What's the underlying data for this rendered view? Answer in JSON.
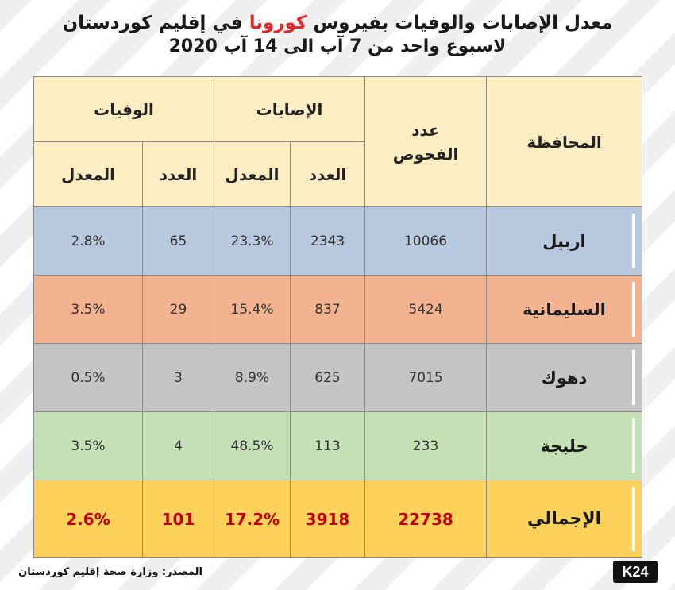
{
  "title": {
    "line1_before": "معدل الإصابات والوفيات بفيروس",
    "line1_accent": "كورونا",
    "line1_after": "في إقليم كوردستان",
    "line2": "لاسبوع واحد من 7 آب الى 14 آب 2020"
  },
  "colors": {
    "accent": "#e8262a",
    "header_bg": "#fdedc2",
    "erbil_bg": "#b8c8de",
    "sulaymaniyah_bg": "#f3b391",
    "duhok_bg": "#c4c4c4",
    "halabja_bg": "#c5e0b5",
    "total_bg": "#fcd25a",
    "total_text": "#c00000"
  },
  "table": {
    "headers": {
      "governorate": "المحافظة",
      "tests": "عدد الفحوص",
      "infections": "الإصابات",
      "deaths": "الوفيات",
      "count": "العدد",
      "rate": "المعدل"
    },
    "rows": [
      {
        "governorate": "اربيل",
        "tests": "10066",
        "inf_count": "2343",
        "inf_rate": "23.3%",
        "death_count": "65",
        "death_rate": "2.8%"
      },
      {
        "governorate": "السليمانية",
        "tests": "5424",
        "inf_count": "837",
        "inf_rate": "15.4%",
        "death_count": "29",
        "death_rate": "3.5%"
      },
      {
        "governorate": "دهوك",
        "tests": "7015",
        "inf_count": "625",
        "inf_rate": "8.9%",
        "death_count": "3",
        "death_rate": "0.5%"
      },
      {
        "governorate": "حلبجة",
        "tests": "233",
        "inf_count": "113",
        "inf_rate": "48.5%",
        "death_count": "4",
        "death_rate": "3.5%"
      }
    ],
    "total": {
      "governorate": "الإجمالي",
      "tests": "22738",
      "inf_count": "3918",
      "inf_rate": "17.2%",
      "death_count": "101",
      "death_rate": "2.6%"
    }
  },
  "source": "المصدر: وزارة صحة إقليم كوردستان",
  "logo_text": "K24"
}
